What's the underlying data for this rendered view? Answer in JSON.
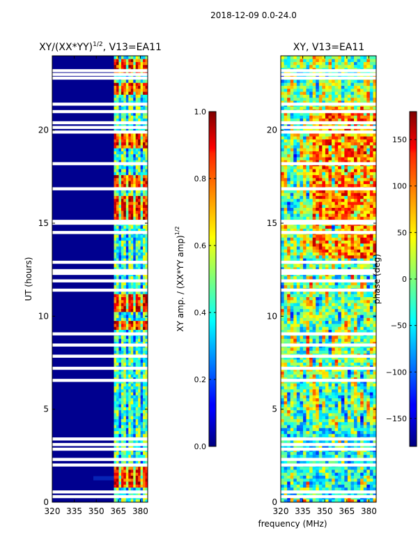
{
  "suptitle": "2018-12-09 0.0-24.0",
  "shared_xlabel": "frequency (MHz)",
  "chart_data": [
    {
      "type": "heatmap",
      "title_main": "XY/(XX*YY)",
      "title_sup": "1/2",
      "title_tail": ", V13=EA11",
      "xlabel": "",
      "ylabel": "UT (hours)",
      "xlim": [
        320,
        385
      ],
      "ylim": [
        0,
        24
      ],
      "x_ticks": [
        320,
        335,
        350,
        365,
        380
      ],
      "y_ticks": [
        0,
        5,
        10,
        15,
        20
      ],
      "data_freq_start": 362,
      "data_freq_end": 385,
      "hot_bands_hours": [
        [
          0.7,
          1.8
        ],
        [
          9.2,
          9.6
        ],
        [
          10.2,
          11.2
        ],
        [
          15.1,
          16.4
        ],
        [
          16.8,
          17.5
        ],
        [
          19.0,
          19.8
        ],
        [
          21.9,
          22.5
        ],
        [
          23.0,
          23.8
        ]
      ],
      "gap_hours": [
        0.3,
        0.55,
        2.0,
        2.3,
        2.85,
        3.1,
        3.4,
        6.55,
        7.2,
        7.85,
        8.45,
        9.05,
        11.4,
        11.9,
        12.3,
        12.45,
        12.9,
        14.5,
        15.0,
        15.1,
        16.85,
        18.2,
        19.9,
        20.15,
        20.4,
        21.0,
        21.4,
        22.8,
        23.0,
        23.2
      ],
      "colorbar": {
        "label_main": "XY amp. / (XX*YY amp)",
        "label_sup": "1/2",
        "range": [
          0.0,
          1.0
        ],
        "ticks": [
          "0.0",
          "0.2",
          "0.4",
          "0.6",
          "0.8",
          "1.0"
        ]
      }
    },
    {
      "type": "heatmap",
      "title": "XY, V13=EA11",
      "xlabel": "",
      "ylabel": "",
      "xlim": [
        320,
        385
      ],
      "ylim": [
        0,
        24
      ],
      "x_ticks": [
        320,
        335,
        350,
        365,
        380
      ],
      "y_ticks": [
        0,
        5,
        10,
        15,
        20
      ],
      "gap_hours": [
        0.3,
        0.55,
        2.0,
        2.3,
        2.85,
        3.1,
        3.4,
        6.55,
        7.2,
        7.85,
        8.45,
        9.05,
        11.4,
        11.9,
        12.3,
        12.45,
        12.9,
        14.5,
        15.0,
        15.1,
        16.85,
        18.2,
        19.9,
        20.15,
        20.4,
        21.0,
        21.4,
        22.8,
        23.0,
        23.2
      ],
      "colorbar": {
        "label": "phase (deg)",
        "range": [
          -180,
          180
        ],
        "ticks": [
          "−150",
          "−100",
          "−50",
          "0",
          "50",
          "100",
          "150"
        ]
      }
    }
  ]
}
